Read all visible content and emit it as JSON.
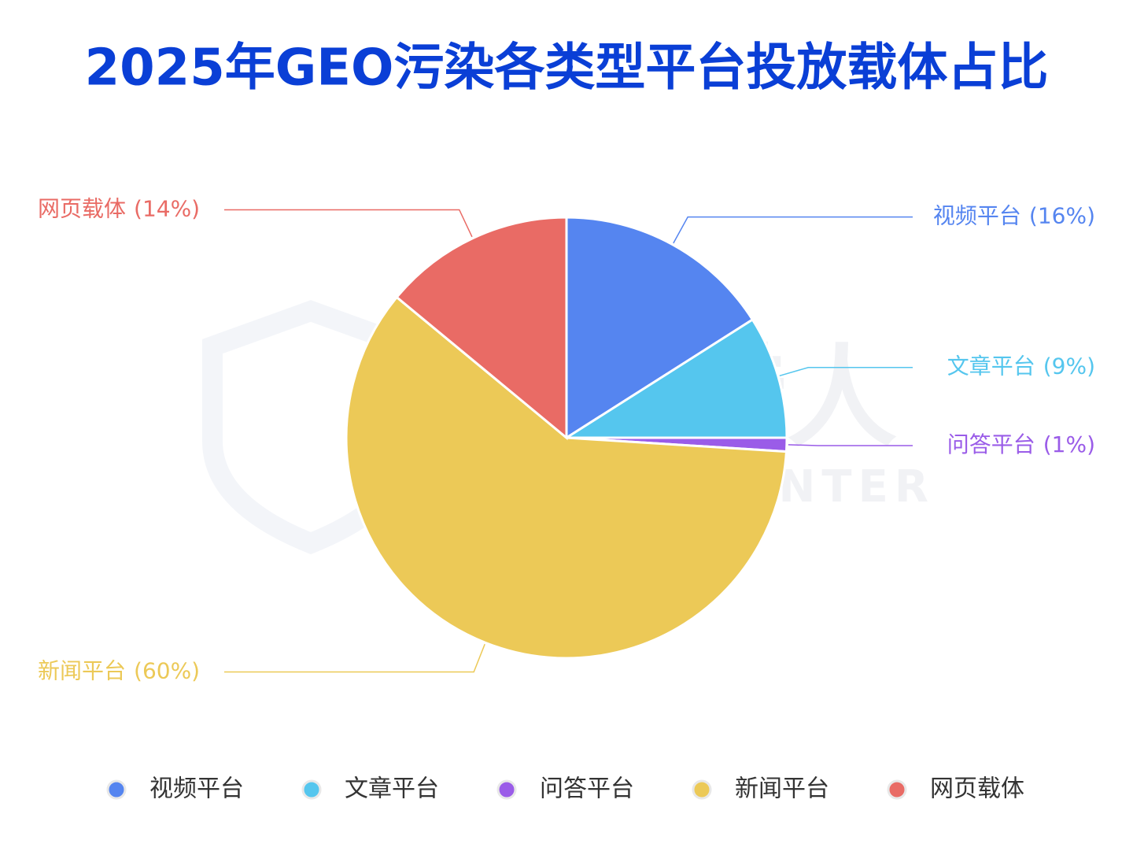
{
  "chart_data": {
    "type": "pie",
    "title": "2025年GEO污染各类型平台投放载体占比",
    "categories": [
      "视频平台",
      "文章平台",
      "问答平台",
      "新闻平台",
      "网页载体"
    ],
    "values": [
      16,
      9,
      1,
      60,
      14
    ],
    "value_labels": [
      "(16%)",
      "(9%)",
      "(1%)",
      "(60%)",
      "(14%)"
    ],
    "colors": [
      "#5585f0",
      "#55c6ee",
      "#9a5ce8",
      "#ecc957",
      "#e96b65"
    ],
    "legend": "bottom",
    "watermark": {
      "cn": "威胁猎人",
      "en": "THREAT HUNTER"
    }
  }
}
